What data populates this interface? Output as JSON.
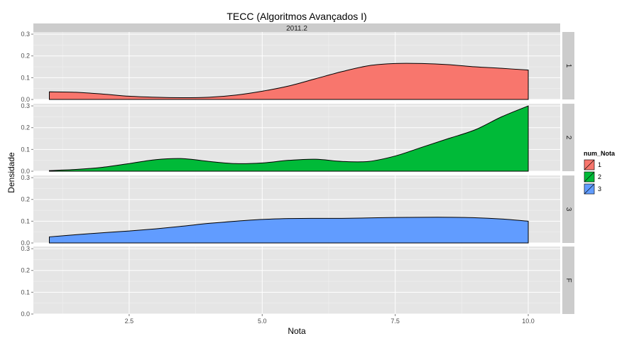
{
  "chart_data": {
    "type": "area",
    "title": "TECC (Algoritmos Avançados I)",
    "column_strip": "2011.2",
    "xlabel": "Nota",
    "ylabel": "Densidade",
    "xlim": [
      0.7,
      10.6
    ],
    "ylim": [
      0,
      0.31
    ],
    "x_ticks": [
      {
        "value": 2.5,
        "label": "2.5"
      },
      {
        "value": 5.0,
        "label": "5.0"
      },
      {
        "value": 7.5,
        "label": "7.5"
      },
      {
        "value": 10.0,
        "label": "10.0"
      }
    ],
    "y_ticks": [
      {
        "value": 0.0,
        "label": "0.0"
      },
      {
        "value": 0.1,
        "label": "0.1"
      },
      {
        "value": 0.2,
        "label": "0.2"
      },
      {
        "value": 0.3,
        "label": "0.3"
      }
    ],
    "grid": true,
    "legend": {
      "title": "num_Nota",
      "position": "right",
      "entries": [
        {
          "label": "1",
          "color": "#F8766D"
        },
        {
          "label": "2",
          "color": "#00BA38"
        },
        {
          "label": "3",
          "color": "#619CFF"
        }
      ]
    },
    "panels": [
      {
        "label": "1",
        "color": "#F8766D",
        "x": [
          1.0,
          1.5,
          2.0,
          2.5,
          3.0,
          3.5,
          4.0,
          4.5,
          5.0,
          5.5,
          6.0,
          6.5,
          7.0,
          7.5,
          8.0,
          8.5,
          9.0,
          9.5,
          10.0
        ],
        "y": [
          0.035,
          0.033,
          0.025,
          0.015,
          0.01,
          0.008,
          0.01,
          0.02,
          0.038,
          0.062,
          0.095,
          0.128,
          0.155,
          0.165,
          0.165,
          0.16,
          0.15,
          0.143,
          0.135
        ]
      },
      {
        "label": "2",
        "color": "#00BA38",
        "x": [
          1.0,
          1.5,
          2.0,
          2.5,
          3.0,
          3.5,
          4.0,
          4.5,
          5.0,
          5.5,
          6.0,
          6.5,
          7.0,
          7.5,
          8.0,
          8.5,
          9.0,
          9.5,
          10.0
        ],
        "y": [
          0.003,
          0.008,
          0.018,
          0.035,
          0.053,
          0.058,
          0.045,
          0.035,
          0.038,
          0.05,
          0.055,
          0.045,
          0.045,
          0.07,
          0.11,
          0.15,
          0.19,
          0.25,
          0.3
        ]
      },
      {
        "label": "3",
        "color": "#619CFF",
        "x": [
          1.0,
          1.5,
          2.0,
          2.5,
          3.0,
          3.5,
          4.0,
          4.5,
          5.0,
          5.5,
          6.0,
          6.5,
          7.0,
          7.5,
          8.0,
          8.5,
          9.0,
          9.5,
          10.0
        ],
        "y": [
          0.028,
          0.038,
          0.047,
          0.055,
          0.065,
          0.077,
          0.09,
          0.1,
          0.108,
          0.112,
          0.113,
          0.113,
          0.115,
          0.117,
          0.118,
          0.118,
          0.116,
          0.11,
          0.1
        ]
      },
      {
        "label": "F",
        "color": "#999999",
        "x": [],
        "y": []
      }
    ]
  }
}
